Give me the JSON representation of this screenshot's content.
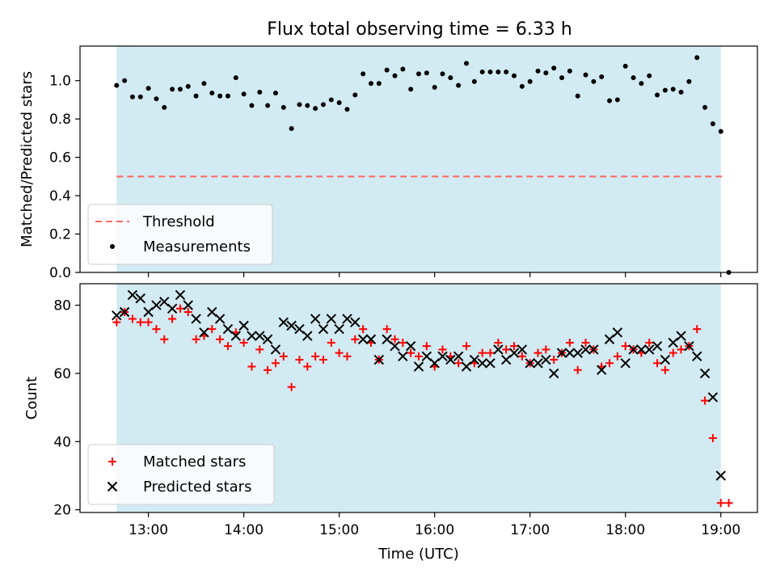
{
  "figure": {
    "title": "Flux total observing time = 6.33 h",
    "xlabel": "Time (UTC)"
  },
  "colors": {
    "band": "#add8e6",
    "threshold": "#ff6666",
    "measurements": "#000000",
    "matched": "#ff0000",
    "predicted": "#000000"
  },
  "chart_data": [
    {
      "type": "scatter",
      "ylabel": "Matched/Predicted stars",
      "xlim": [
        "12:17",
        "19:23"
      ],
      "ylim": [
        0,
        1.18
      ],
      "x_ticks": [
        "13:00",
        "14:00",
        "15:00",
        "16:00",
        "17:00",
        "18:00",
        "19:00"
      ],
      "y_ticks": [
        "0.0",
        "0.2",
        "0.4",
        "0.6",
        "0.8",
        "1.0"
      ],
      "shaded_span": [
        "12:40",
        "19:00"
      ],
      "legend_location": "lower left",
      "threshold": {
        "name": "Threshold",
        "value": 0.5,
        "x_range": [
          "12:40",
          "19:03"
        ],
        "style": "dashed"
      },
      "series": [
        {
          "name": "Measurements",
          "marker": "dot",
          "points": [
            [
              "12:40",
              0.975
            ],
            [
              "12:45",
              1.0
            ],
            [
              "12:50",
              0.915
            ],
            [
              "12:55",
              0.915
            ],
            [
              "13:00",
              0.96
            ],
            [
              "13:05",
              0.905
            ],
            [
              "13:10",
              0.86
            ],
            [
              "13:15",
              0.955
            ],
            [
              "13:20",
              0.955
            ],
            [
              "13:25",
              0.97
            ],
            [
              "13:30",
              0.92
            ],
            [
              "13:35",
              0.985
            ],
            [
              "13:40",
              0.935
            ],
            [
              "13:45",
              0.92
            ],
            [
              "13:50",
              0.92
            ],
            [
              "13:55",
              1.015
            ],
            [
              "14:00",
              0.93
            ],
            [
              "14:05",
              0.87
            ],
            [
              "14:10",
              0.94
            ],
            [
              "14:15",
              0.87
            ],
            [
              "14:20",
              0.935
            ],
            [
              "14:25",
              0.86
            ],
            [
              "14:30",
              0.75
            ],
            [
              "14:35",
              0.875
            ],
            [
              "14:40",
              0.87
            ],
            [
              "14:45",
              0.855
            ],
            [
              "14:50",
              0.875
            ],
            [
              "14:55",
              0.9
            ],
            [
              "15:00",
              0.885
            ],
            [
              "15:05",
              0.85
            ],
            [
              "15:10",
              0.925
            ],
            [
              "15:15",
              1.035
            ],
            [
              "15:20",
              0.985
            ],
            [
              "15:25",
              0.985
            ],
            [
              "15:30",
              1.055
            ],
            [
              "15:35",
              1.025
            ],
            [
              "15:40",
              1.06
            ],
            [
              "15:45",
              0.955
            ],
            [
              "15:50",
              1.035
            ],
            [
              "15:55",
              1.04
            ],
            [
              "16:00",
              0.965
            ],
            [
              "16:05",
              1.035
            ],
            [
              "16:10",
              1.015
            ],
            [
              "16:15",
              0.975
            ],
            [
              "16:20",
              1.09
            ],
            [
              "16:25",
              0.995
            ],
            [
              "16:30",
              1.045
            ],
            [
              "16:35",
              1.045
            ],
            [
              "16:40",
              1.045
            ],
            [
              "16:45",
              1.045
            ],
            [
              "16:50",
              1.025
            ],
            [
              "16:55",
              0.97
            ],
            [
              "17:00",
              0.995
            ],
            [
              "17:05",
              1.05
            ],
            [
              "17:10",
              1.04
            ],
            [
              "17:15",
              1.065
            ],
            [
              "17:20",
              1.015
            ],
            [
              "17:25",
              1.05
            ],
            [
              "17:30",
              0.92
            ],
            [
              "17:35",
              1.03
            ],
            [
              "17:40",
              0.995
            ],
            [
              "17:45",
              1.02
            ],
            [
              "17:50",
              0.895
            ],
            [
              "17:55",
              0.9
            ],
            [
              "18:00",
              1.075
            ],
            [
              "18:05",
              1.015
            ],
            [
              "18:10",
              0.985
            ],
            [
              "18:15",
              1.025
            ],
            [
              "18:20",
              0.925
            ],
            [
              "18:25",
              0.95
            ],
            [
              "18:30",
              0.955
            ],
            [
              "18:35",
              0.94
            ],
            [
              "18:40",
              0.995
            ],
            [
              "18:45",
              1.12
            ],
            [
              "18:50",
              0.86
            ],
            [
              "18:55",
              0.775
            ],
            [
              "19:00",
              0.735
            ],
            [
              "19:05",
              0.0
            ]
          ]
        }
      ]
    },
    {
      "type": "scatter",
      "ylabel": "Count",
      "xlim": [
        "12:17",
        "19:23"
      ],
      "ylim": [
        19.2,
        86.3
      ],
      "x_ticks": [
        "13:00",
        "14:00",
        "15:00",
        "16:00",
        "17:00",
        "18:00",
        "19:00"
      ],
      "y_ticks": [
        "20",
        "40",
        "60",
        "80"
      ],
      "shaded_span": [
        "12:40",
        "19:00"
      ],
      "legend_location": "lower left",
      "series": [
        {
          "name": "Matched stars",
          "marker": "plus",
          "points": [
            [
              "12:40",
              75
            ],
            [
              "12:45",
              78
            ],
            [
              "12:50",
              76
            ],
            [
              "12:55",
              75
            ],
            [
              "13:00",
              75
            ],
            [
              "13:05",
              73
            ],
            [
              "13:10",
              70
            ],
            [
              "13:15",
              76
            ],
            [
              "13:20",
              79
            ],
            [
              "13:25",
              78
            ],
            [
              "13:30",
              70
            ],
            [
              "13:35",
              71
            ],
            [
              "13:40",
              73
            ],
            [
              "13:45",
              70
            ],
            [
              "13:50",
              68
            ],
            [
              "13:55",
              72
            ],
            [
              "14:00",
              69
            ],
            [
              "14:05",
              62
            ],
            [
              "14:10",
              67
            ],
            [
              "14:15",
              61
            ],
            [
              "14:20",
              63
            ],
            [
              "14:25",
              65
            ],
            [
              "14:30",
              56
            ],
            [
              "14:35",
              64
            ],
            [
              "14:40",
              62
            ],
            [
              "14:45",
              65
            ],
            [
              "14:50",
              64
            ],
            [
              "14:55",
              69
            ],
            [
              "15:00",
              66
            ],
            [
              "15:05",
              65
            ],
            [
              "15:10",
              70
            ],
            [
              "15:15",
              73
            ],
            [
              "15:20",
              69
            ],
            [
              "15:25",
              64
            ],
            [
              "15:30",
              73
            ],
            [
              "15:35",
              70
            ],
            [
              "15:40",
              69
            ],
            [
              "15:45",
              66
            ],
            [
              "15:50",
              65
            ],
            [
              "15:55",
              68
            ],
            [
              "16:00",
              62
            ],
            [
              "16:05",
              67
            ],
            [
              "16:10",
              65
            ],
            [
              "16:15",
              63
            ],
            [
              "16:20",
              68
            ],
            [
              "16:25",
              63
            ],
            [
              "16:30",
              66
            ],
            [
              "16:35",
              66
            ],
            [
              "16:40",
              69
            ],
            [
              "16:45",
              67
            ],
            [
              "16:50",
              68
            ],
            [
              "16:55",
              65
            ],
            [
              "17:00",
              63
            ],
            [
              "17:05",
              66
            ],
            [
              "17:10",
              67
            ],
            [
              "17:15",
              64
            ],
            [
              "17:20",
              66
            ],
            [
              "17:25",
              69
            ],
            [
              "17:30",
              61
            ],
            [
              "17:35",
              69
            ],
            [
              "17:40",
              67
            ],
            [
              "17:45",
              62
            ],
            [
              "17:50",
              63
            ],
            [
              "17:55",
              65
            ],
            [
              "18:00",
              68
            ],
            [
              "18:05",
              67
            ],
            [
              "18:10",
              66
            ],
            [
              "18:15",
              69
            ],
            [
              "18:20",
              63
            ],
            [
              "18:25",
              61
            ],
            [
              "18:30",
              66
            ],
            [
              "18:35",
              67
            ],
            [
              "18:40",
              68
            ],
            [
              "18:45",
              73
            ],
            [
              "18:50",
              52
            ],
            [
              "18:55",
              41
            ],
            [
              "19:00",
              22
            ],
            [
              "19:05",
              22
            ]
          ]
        },
        {
          "name": "Predicted stars",
          "marker": "x",
          "points": [
            [
              "12:40",
              77
            ],
            [
              "12:45",
              78
            ],
            [
              "12:50",
              83
            ],
            [
              "12:55",
              82
            ],
            [
              "13:00",
              78
            ],
            [
              "13:05",
              80
            ],
            [
              "13:10",
              81
            ],
            [
              "13:15",
              79
            ],
            [
              "13:20",
              83
            ],
            [
              "13:25",
              80
            ],
            [
              "13:30",
              76
            ],
            [
              "13:35",
              72
            ],
            [
              "13:40",
              78
            ],
            [
              "13:45",
              76
            ],
            [
              "13:50",
              73
            ],
            [
              "13:55",
              71
            ],
            [
              "14:00",
              74
            ],
            [
              "14:05",
              71
            ],
            [
              "14:10",
              71
            ],
            [
              "14:15",
              70
            ],
            [
              "14:20",
              67
            ],
            [
              "14:25",
              75
            ],
            [
              "14:30",
              74
            ],
            [
              "14:35",
              73
            ],
            [
              "14:40",
              71
            ],
            [
              "14:45",
              76
            ],
            [
              "14:50",
              73
            ],
            [
              "14:55",
              76
            ],
            [
              "15:00",
              73
            ],
            [
              "15:05",
              76
            ],
            [
              "15:10",
              75
            ],
            [
              "15:15",
              70
            ],
            [
              "15:20",
              70
            ],
            [
              "15:25",
              64
            ],
            [
              "15:30",
              70
            ],
            [
              "15:35",
              68
            ],
            [
              "15:40",
              65
            ],
            [
              "15:45",
              68
            ],
            [
              "15:50",
              62
            ],
            [
              "15:55",
              65
            ],
            [
              "16:00",
              63
            ],
            [
              "16:05",
              65
            ],
            [
              "16:10",
              64
            ],
            [
              "16:15",
              65
            ],
            [
              "16:20",
              62
            ],
            [
              "16:25",
              64
            ],
            [
              "16:30",
              63
            ],
            [
              "16:35",
              63
            ],
            [
              "16:40",
              67
            ],
            [
              "16:45",
              64
            ],
            [
              "16:50",
              66
            ],
            [
              "16:55",
              67
            ],
            [
              "17:00",
              63
            ],
            [
              "17:05",
              63
            ],
            [
              "17:10",
              64
            ],
            [
              "17:15",
              60
            ],
            [
              "17:20",
              66
            ],
            [
              "17:25",
              66
            ],
            [
              "17:30",
              66
            ],
            [
              "17:35",
              67
            ],
            [
              "17:40",
              67
            ],
            [
              "17:45",
              61
            ],
            [
              "17:50",
              70
            ],
            [
              "17:55",
              72
            ],
            [
              "18:00",
              63
            ],
            [
              "18:05",
              67
            ],
            [
              "18:10",
              67
            ],
            [
              "18:15",
              67
            ],
            [
              "18:20",
              68
            ],
            [
              "18:25",
              64
            ],
            [
              "18:30",
              69
            ],
            [
              "18:35",
              71
            ],
            [
              "18:40",
              68
            ],
            [
              "18:45",
              65
            ],
            [
              "18:50",
              60
            ],
            [
              "18:55",
              53
            ],
            [
              "19:00",
              30
            ]
          ]
        }
      ]
    }
  ]
}
